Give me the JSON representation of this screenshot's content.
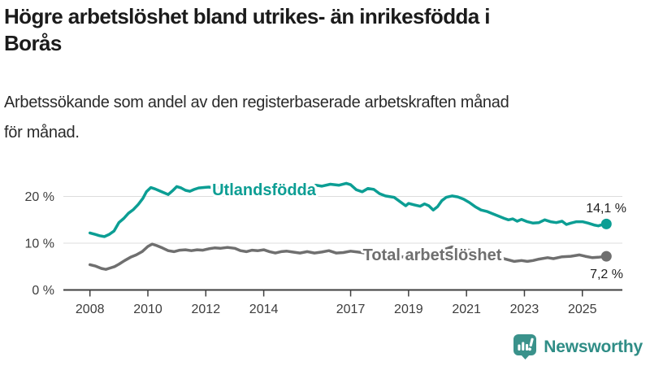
{
  "header": {
    "title_lines": [
      "Högre arbetslöshet bland utrikes- än inrikesfödda i",
      "Borås"
    ],
    "subtitle_lines": [
      "Arbetssökande som andel av den registerbaserade arbetskraften månad",
      "för månad."
    ]
  },
  "chart_data": {
    "type": "line",
    "title": "Högre arbetslöshet bland utrikes- än inrikesfödda i Borås",
    "subtitle": "Arbetssökande som andel av den registerbaserade arbetskraften månad för månad.",
    "xlabel": "",
    "ylabel": "",
    "grid": "horizontal",
    "legend_position": "inline-on-lines",
    "x_axis": {
      "range": [
        2007.9,
        2026.3
      ],
      "ticks": [
        {
          "value": 2008,
          "label": "2008"
        },
        {
          "value": 2010,
          "label": "2010"
        },
        {
          "value": 2012,
          "label": "2012"
        },
        {
          "value": 2014,
          "label": "2014"
        },
        {
          "value": 2017,
          "label": "2017"
        },
        {
          "value": 2019,
          "label": "2019"
        },
        {
          "value": 2021,
          "label": "2021"
        },
        {
          "value": 2023,
          "label": "2023"
        },
        {
          "value": 2025,
          "label": "2025"
        }
      ]
    },
    "y_axis": {
      "range": [
        0,
        25
      ],
      "ticks": [
        {
          "value": 0,
          "label": "0 %"
        },
        {
          "value": 10,
          "label": "10 %"
        },
        {
          "value": 20,
          "label": "20 %"
        }
      ]
    },
    "series": [
      {
        "name": "Utlandsfödda",
        "color": "#0c9e94",
        "end_label": "14,1 %",
        "end_value": 14.1,
        "points": [
          [
            2008.0,
            12.2
          ],
          [
            2008.17,
            11.9
          ],
          [
            2008.33,
            11.6
          ],
          [
            2008.5,
            11.4
          ],
          [
            2008.67,
            11.9
          ],
          [
            2008.83,
            12.6
          ],
          [
            2009.0,
            14.4
          ],
          [
            2009.17,
            15.3
          ],
          [
            2009.33,
            16.4
          ],
          [
            2009.5,
            17.2
          ],
          [
            2009.67,
            18.3
          ],
          [
            2009.83,
            19.6
          ],
          [
            2009.95,
            21.0
          ],
          [
            2010.1,
            21.9
          ],
          [
            2010.25,
            21.6
          ],
          [
            2010.4,
            21.2
          ],
          [
            2010.55,
            20.8
          ],
          [
            2010.7,
            20.4
          ],
          [
            2010.85,
            21.2
          ],
          [
            2011.0,
            22.1
          ],
          [
            2011.15,
            21.8
          ],
          [
            2011.3,
            21.3
          ],
          [
            2011.45,
            21.1
          ],
          [
            2011.6,
            21.5
          ],
          [
            2011.75,
            21.8
          ],
          [
            2011.9,
            21.9
          ],
          [
            2012.1,
            22.0
          ],
          [
            2012.3,
            21.8
          ],
          [
            2012.5,
            21.9
          ],
          [
            2012.75,
            21.6
          ],
          [
            2013.0,
            21.5
          ],
          [
            2013.25,
            21.7
          ],
          [
            2013.5,
            21.4
          ],
          [
            2013.75,
            21.0
          ],
          [
            2014.0,
            20.8
          ],
          [
            2014.3,
            20.3
          ],
          [
            2014.6,
            20.7
          ],
          [
            2014.9,
            21.0
          ],
          [
            2015.2,
            21.3
          ],
          [
            2015.5,
            21.7
          ],
          [
            2015.8,
            22.4
          ],
          [
            2016.0,
            22.2
          ],
          [
            2016.3,
            22.6
          ],
          [
            2016.6,
            22.4
          ],
          [
            2016.85,
            22.8
          ],
          [
            2017.0,
            22.5
          ],
          [
            2017.2,
            21.4
          ],
          [
            2017.4,
            21.0
          ],
          [
            2017.6,
            21.7
          ],
          [
            2017.8,
            21.5
          ],
          [
            2018.0,
            20.6
          ],
          [
            2018.2,
            20.1
          ],
          [
            2018.5,
            19.8
          ],
          [
            2018.7,
            18.9
          ],
          [
            2018.9,
            18.0
          ],
          [
            2019.0,
            18.5
          ],
          [
            2019.2,
            18.2
          ],
          [
            2019.4,
            17.9
          ],
          [
            2019.55,
            18.4
          ],
          [
            2019.7,
            18.0
          ],
          [
            2019.85,
            17.1
          ],
          [
            2020.0,
            17.8
          ],
          [
            2020.15,
            19.1
          ],
          [
            2020.3,
            19.8
          ],
          [
            2020.5,
            20.1
          ],
          [
            2020.7,
            19.9
          ],
          [
            2020.9,
            19.4
          ],
          [
            2021.1,
            18.7
          ],
          [
            2021.3,
            17.8
          ],
          [
            2021.5,
            17.1
          ],
          [
            2021.7,
            16.8
          ],
          [
            2021.9,
            16.3
          ],
          [
            2022.1,
            15.8
          ],
          [
            2022.3,
            15.3
          ],
          [
            2022.45,
            15.0
          ],
          [
            2022.6,
            15.2
          ],
          [
            2022.75,
            14.7
          ],
          [
            2022.9,
            15.1
          ],
          [
            2023.1,
            14.6
          ],
          [
            2023.3,
            14.3
          ],
          [
            2023.5,
            14.4
          ],
          [
            2023.7,
            15.0
          ],
          [
            2023.9,
            14.6
          ],
          [
            2024.1,
            14.4
          ],
          [
            2024.3,
            14.7
          ],
          [
            2024.45,
            14.0
          ],
          [
            2024.6,
            14.3
          ],
          [
            2024.8,
            14.6
          ],
          [
            2025.0,
            14.6
          ],
          [
            2025.2,
            14.3
          ],
          [
            2025.4,
            13.9
          ],
          [
            2025.55,
            13.7
          ],
          [
            2025.7,
            14.0
          ],
          [
            2025.83,
            14.1
          ]
        ]
      },
      {
        "name": "Total arbetslöshet",
        "color": "#6f6f6f",
        "end_label": "7,2 %",
        "end_value": 7.2,
        "points": [
          [
            2008.0,
            5.4
          ],
          [
            2008.2,
            5.1
          ],
          [
            2008.4,
            4.6
          ],
          [
            2008.55,
            4.4
          ],
          [
            2008.7,
            4.7
          ],
          [
            2008.85,
            5.0
          ],
          [
            2009.0,
            5.5
          ],
          [
            2009.2,
            6.3
          ],
          [
            2009.4,
            7.0
          ],
          [
            2009.6,
            7.5
          ],
          [
            2009.8,
            8.2
          ],
          [
            2010.0,
            9.3
          ],
          [
            2010.15,
            9.8
          ],
          [
            2010.3,
            9.5
          ],
          [
            2010.5,
            9.0
          ],
          [
            2010.7,
            8.4
          ],
          [
            2010.9,
            8.2
          ],
          [
            2011.1,
            8.5
          ],
          [
            2011.3,
            8.6
          ],
          [
            2011.5,
            8.4
          ],
          [
            2011.7,
            8.6
          ],
          [
            2011.9,
            8.5
          ],
          [
            2012.1,
            8.8
          ],
          [
            2012.3,
            9.0
          ],
          [
            2012.5,
            8.9
          ],
          [
            2012.75,
            9.1
          ],
          [
            2013.0,
            8.9
          ],
          [
            2013.2,
            8.4
          ],
          [
            2013.4,
            8.2
          ],
          [
            2013.6,
            8.5
          ],
          [
            2013.8,
            8.4
          ],
          [
            2014.0,
            8.6
          ],
          [
            2014.2,
            8.2
          ],
          [
            2014.4,
            7.9
          ],
          [
            2014.6,
            8.2
          ],
          [
            2014.8,
            8.3
          ],
          [
            2015.0,
            8.1
          ],
          [
            2015.25,
            7.9
          ],
          [
            2015.5,
            8.2
          ],
          [
            2015.75,
            7.9
          ],
          [
            2016.0,
            8.1
          ],
          [
            2016.25,
            8.4
          ],
          [
            2016.5,
            7.9
          ],
          [
            2016.75,
            8.0
          ],
          [
            2017.0,
            8.3
          ],
          [
            2017.25,
            8.1
          ],
          [
            2017.5,
            7.9
          ],
          [
            2017.75,
            7.7
          ],
          [
            2018.0,
            7.6
          ],
          [
            2018.3,
            7.4
          ],
          [
            2018.6,
            7.2
          ],
          [
            2018.9,
            7.0
          ],
          [
            2019.2,
            7.1
          ],
          [
            2019.5,
            7.3
          ],
          [
            2019.8,
            7.2
          ],
          [
            2020.0,
            7.8
          ],
          [
            2020.3,
            8.8
          ],
          [
            2020.5,
            9.2
          ],
          [
            2020.7,
            9.0
          ],
          [
            2020.9,
            8.7
          ],
          [
            2021.2,
            8.4
          ],
          [
            2021.5,
            8.0
          ],
          [
            2021.8,
            7.5
          ],
          [
            2022.1,
            7.0
          ],
          [
            2022.4,
            6.5
          ],
          [
            2022.65,
            6.1
          ],
          [
            2022.9,
            6.3
          ],
          [
            2023.1,
            6.1
          ],
          [
            2023.3,
            6.3
          ],
          [
            2023.5,
            6.6
          ],
          [
            2023.8,
            6.9
          ],
          [
            2024.0,
            6.7
          ],
          [
            2024.3,
            7.1
          ],
          [
            2024.6,
            7.2
          ],
          [
            2024.9,
            7.5
          ],
          [
            2025.1,
            7.2
          ],
          [
            2025.35,
            6.9
          ],
          [
            2025.55,
            7.0
          ],
          [
            2025.83,
            7.2
          ]
        ]
      }
    ],
    "colors": {
      "grid": "#dcdcdc",
      "axis": "#3f3f3f",
      "tick_text": "#3d3d3d",
      "value_text": "#1f1f1f"
    }
  },
  "branding": {
    "logo_text": "Newsworthy",
    "logo_color": "#2f8d86",
    "icon": "bar-chart-speech-bubble-icon",
    "icon_color": "#3a928b"
  }
}
